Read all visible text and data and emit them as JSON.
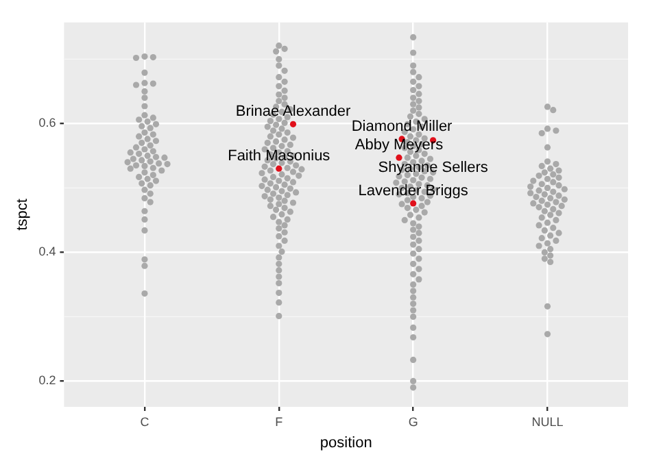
{
  "chart_data": {
    "type": "scatter",
    "xlabel": "position",
    "ylabel": "tspct",
    "categories": [
      "C",
      "F",
      "G",
      "NULL"
    ],
    "ylim": [
      0.16,
      0.757
    ],
    "yticks": [
      0.2,
      0.4,
      0.6
    ],
    "grid": true,
    "legend": false,
    "marker": "circle",
    "series": [
      {
        "color": "#a9a9a9",
        "x": [
          "C",
          "C",
          "C",
          "C",
          "C",
          "C",
          "C",
          "C",
          "C",
          "C",
          "C",
          "C",
          "C",
          "C",
          "C",
          "C",
          "C",
          "C",
          "C",
          "C",
          "C",
          "C",
          "C",
          "C",
          "C",
          "C",
          "C",
          "C",
          "C",
          "C",
          "C",
          "C",
          "C",
          "C",
          "C",
          "C",
          "C",
          "C",
          "C",
          "C",
          "C",
          "C",
          "C",
          "C",
          "C",
          "C",
          "C",
          "C",
          "C",
          "C",
          "C",
          "C",
          "C",
          "C",
          "C",
          "C",
          "C",
          "C",
          "C",
          "C"
        ],
        "values": [
          0.704,
          0.703,
          0.702,
          0.679,
          0.663,
          0.662,
          0.66,
          0.65,
          0.64,
          0.627,
          0.613,
          0.609,
          0.606,
          0.603,
          0.599,
          0.596,
          0.593,
          0.586,
          0.583,
          0.58,
          0.576,
          0.573,
          0.57,
          0.566,
          0.563,
          0.56,
          0.557,
          0.555,
          0.553,
          0.55,
          0.548,
          0.547,
          0.545,
          0.543,
          0.541,
          0.54,
          0.538,
          0.537,
          0.535,
          0.534,
          0.531,
          0.53,
          0.527,
          0.524,
          0.52,
          0.517,
          0.514,
          0.511,
          0.507,
          0.504,
          0.497,
          0.491,
          0.484,
          0.478,
          0.464,
          0.451,
          0.434,
          0.389,
          0.379,
          0.336
        ]
      },
      {
        "color": "#a9a9a9",
        "x": [
          "F",
          "F",
          "F",
          "F",
          "F",
          "F",
          "F",
          "F",
          "F",
          "F",
          "F",
          "F",
          "F",
          "F",
          "F",
          "F",
          "F",
          "F",
          "F",
          "F",
          "F",
          "F",
          "F",
          "F",
          "F",
          "F",
          "F",
          "F",
          "F",
          "F",
          "F",
          "F",
          "F",
          "F",
          "F",
          "F",
          "F",
          "F",
          "F",
          "F",
          "F",
          "F",
          "F",
          "F",
          "F",
          "F",
          "F",
          "F",
          "F",
          "F",
          "F",
          "F",
          "F",
          "F",
          "F",
          "F",
          "F",
          "F",
          "F",
          "F",
          "F",
          "F",
          "F",
          "F",
          "F",
          "F",
          "F",
          "F",
          "F",
          "F",
          "F",
          "F",
          "F",
          "F",
          "F",
          "F",
          "F",
          "F",
          "F",
          "F",
          "F",
          "F",
          "F",
          "F",
          "F",
          "F",
          "F",
          "F",
          "F",
          "F",
          "F",
          "F",
          "F",
          "F",
          "F",
          "F",
          "F",
          "F",
          "F",
          "F"
        ],
        "values": [
          0.721,
          0.716,
          0.712,
          0.7,
          0.69,
          0.682,
          0.672,
          0.665,
          0.658,
          0.651,
          0.645,
          0.64,
          0.635,
          0.63,
          0.626,
          0.622,
          0.618,
          0.614,
          0.61,
          0.607,
          0.604,
          0.601,
          0.598,
          0.595,
          0.592,
          0.589,
          0.586,
          0.583,
          0.58,
          0.578,
          0.575,
          0.572,
          0.57,
          0.567,
          0.565,
          0.562,
          0.56,
          0.557,
          0.555,
          0.552,
          0.55,
          0.548,
          0.546,
          0.543,
          0.541,
          0.539,
          0.537,
          0.535,
          0.533,
          0.531,
          0.529,
          0.527,
          0.525,
          0.523,
          0.521,
          0.519,
          0.517,
          0.515,
          0.513,
          0.511,
          0.509,
          0.507,
          0.505,
          0.503,
          0.501,
          0.499,
          0.497,
          0.495,
          0.493,
          0.491,
          0.489,
          0.487,
          0.485,
          0.482,
          0.48,
          0.477,
          0.475,
          0.472,
          0.469,
          0.466,
          0.463,
          0.459,
          0.455,
          0.451,
          0.447,
          0.442,
          0.437,
          0.431,
          0.425,
          0.418,
          0.41,
          0.401,
          0.392,
          0.382,
          0.372,
          0.362,
          0.352,
          0.337,
          0.322,
          0.301
        ]
      },
      {
        "color": "#a9a9a9",
        "x": [
          "G",
          "G",
          "G",
          "G",
          "G",
          "G",
          "G",
          "G",
          "G",
          "G",
          "G",
          "G",
          "G",
          "G",
          "G",
          "G",
          "G",
          "G",
          "G",
          "G",
          "G",
          "G",
          "G",
          "G",
          "G",
          "G",
          "G",
          "G",
          "G",
          "G",
          "G",
          "G",
          "G",
          "G",
          "G",
          "G",
          "G",
          "G",
          "G",
          "G",
          "G",
          "G",
          "G",
          "G",
          "G",
          "G",
          "G",
          "G",
          "G",
          "G",
          "G",
          "G",
          "G",
          "G",
          "G",
          "G",
          "G",
          "G",
          "G",
          "G",
          "G",
          "G",
          "G",
          "G",
          "G",
          "G",
          "G",
          "G",
          "G",
          "G",
          "G",
          "G",
          "G",
          "G",
          "G",
          "G",
          "G",
          "G",
          "G",
          "G",
          "G",
          "G",
          "G",
          "G",
          "G",
          "G",
          "G",
          "G",
          "G",
          "G",
          "G",
          "G",
          "G",
          "G",
          "G",
          "G",
          "G",
          "G",
          "G",
          "G"
        ],
        "values": [
          0.734,
          0.71,
          0.69,
          0.68,
          0.672,
          0.665,
          0.658,
          0.652,
          0.646,
          0.64,
          0.635,
          0.63,
          0.625,
          0.62,
          0.615,
          0.611,
          0.607,
          0.603,
          0.599,
          0.595,
          0.591,
          0.587,
          0.583,
          0.58,
          0.577,
          0.574,
          0.571,
          0.568,
          0.565,
          0.562,
          0.559,
          0.556,
          0.553,
          0.55,
          0.547,
          0.545,
          0.542,
          0.54,
          0.537,
          0.535,
          0.532,
          0.53,
          0.528,
          0.526,
          0.524,
          0.522,
          0.52,
          0.518,
          0.516,
          0.514,
          0.512,
          0.51,
          0.508,
          0.506,
          0.504,
          0.502,
          0.5,
          0.498,
          0.496,
          0.494,
          0.492,
          0.49,
          0.488,
          0.486,
          0.484,
          0.481,
          0.478,
          0.475,
          0.472,
          0.469,
          0.466,
          0.462,
          0.458,
          0.454,
          0.45,
          0.445,
          0.44,
          0.435,
          0.43,
          0.424,
          0.418,
          0.412,
          0.405,
          0.398,
          0.39,
          0.382,
          0.374,
          0.366,
          0.358,
          0.35,
          0.34,
          0.33,
          0.32,
          0.31,
          0.3,
          0.283,
          0.268,
          0.233,
          0.2,
          0.19
        ]
      },
      {
        "color": "#a9a9a9",
        "x": [
          "NULL",
          "NULL",
          "NULL",
          "NULL",
          "NULL",
          "NULL",
          "NULL",
          "NULL",
          "NULL",
          "NULL",
          "NULL",
          "NULL",
          "NULL",
          "NULL",
          "NULL",
          "NULL",
          "NULL",
          "NULL",
          "NULL",
          "NULL",
          "NULL",
          "NULL",
          "NULL",
          "NULL",
          "NULL",
          "NULL",
          "NULL",
          "NULL",
          "NULL",
          "NULL",
          "NULL",
          "NULL",
          "NULL",
          "NULL",
          "NULL",
          "NULL",
          "NULL",
          "NULL",
          "NULL",
          "NULL",
          "NULL",
          "NULL",
          "NULL",
          "NULL",
          "NULL",
          "NULL",
          "NULL",
          "NULL",
          "NULL",
          "NULL",
          "NULL",
          "NULL",
          "NULL",
          "NULL",
          "NULL",
          "NULL",
          "NULL",
          "NULL",
          "NULL",
          "NULL"
        ],
        "values": [
          0.626,
          0.621,
          0.592,
          0.589,
          0.585,
          0.563,
          0.541,
          0.537,
          0.534,
          0.53,
          0.527,
          0.524,
          0.521,
          0.519,
          0.516,
          0.514,
          0.511,
          0.509,
          0.506,
          0.504,
          0.502,
          0.5,
          0.498,
          0.496,
          0.494,
          0.492,
          0.49,
          0.488,
          0.486,
          0.484,
          0.482,
          0.48,
          0.478,
          0.476,
          0.474,
          0.472,
          0.47,
          0.467,
          0.464,
          0.461,
          0.458,
          0.454,
          0.45,
          0.446,
          0.442,
          0.438,
          0.434,
          0.43,
          0.426,
          0.422,
          0.418,
          0.414,
          0.41,
          0.405,
          0.4,
          0.395,
          0.39,
          0.385,
          0.316,
          0.273
        ]
      },
      {
        "color": "#e0101b",
        "x": [
          "F",
          "F",
          "G",
          "G",
          "G",
          "G"
        ],
        "values": [
          0.599,
          0.53,
          0.576,
          0.547,
          0.574,
          0.476
        ]
      }
    ],
    "annotations": [
      {
        "text": "Brinae Alexander",
        "x": "F",
        "y": 0.599
      },
      {
        "text": "Faith Masonius",
        "x": "F",
        "y": 0.53
      },
      {
        "text": "Diamond Miller",
        "x": "G",
        "y": 0.576
      },
      {
        "text": "Abby Meyers",
        "x": "G",
        "y": 0.547
      },
      {
        "text": "Shyanne Sellers",
        "x": "G",
        "y": 0.574
      },
      {
        "text": "Lavender Briggs",
        "x": "G",
        "y": 0.476
      }
    ]
  }
}
